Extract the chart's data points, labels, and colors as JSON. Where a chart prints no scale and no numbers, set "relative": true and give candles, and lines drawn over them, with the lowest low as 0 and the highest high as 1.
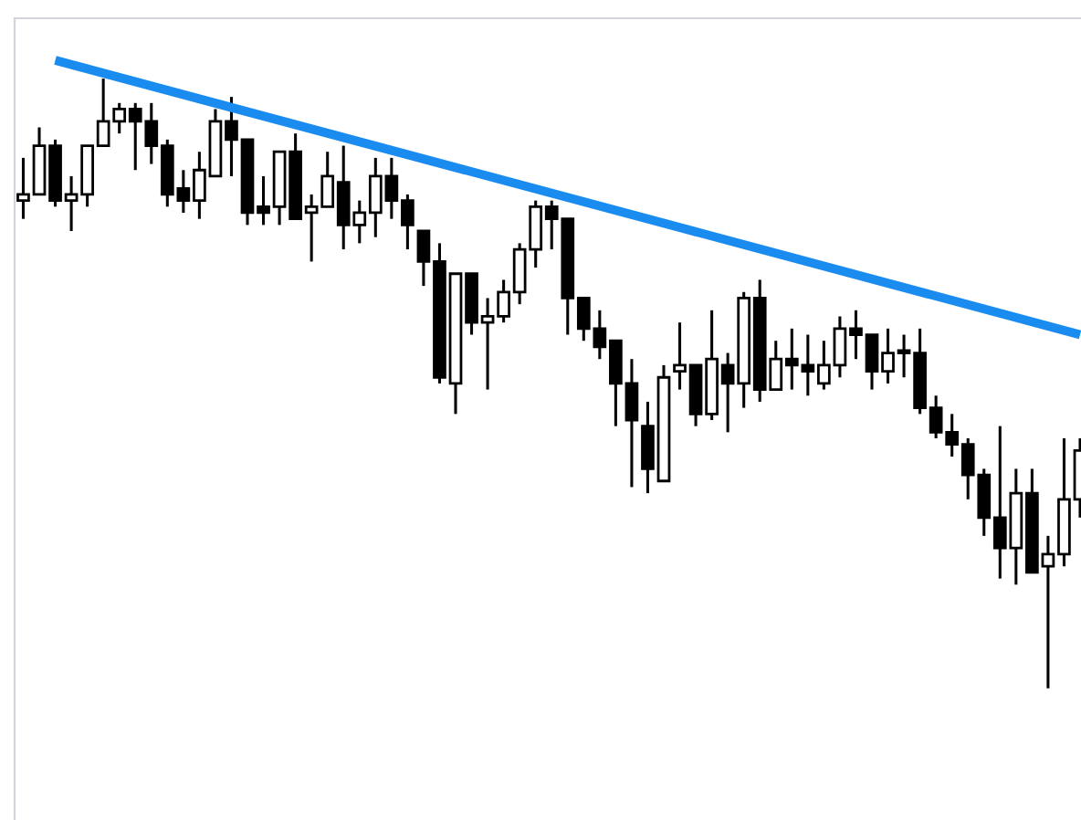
{
  "chart_data": {
    "type": "candlestick",
    "relative": true,
    "color": "#000000",
    "categories": [
      null,
      null,
      null,
      null,
      null,
      null,
      null,
      null,
      null,
      null,
      null,
      null,
      null,
      null,
      null,
      null,
      null,
      null,
      null,
      null,
      null,
      null,
      null,
      null,
      null,
      null,
      null,
      null,
      null,
      null,
      null,
      null,
      null,
      null,
      null,
      null,
      null,
      null,
      null,
      null,
      null,
      null,
      null,
      null,
      null,
      null,
      null,
      null,
      null,
      null,
      null,
      null,
      null,
      null,
      null,
      null,
      null,
      null,
      null,
      null,
      null,
      null,
      null,
      null,
      null,
      null,
      null
    ],
    "ohlc": [
      [
        0.8,
        0.87,
        0.77,
        0.81
      ],
      [
        0.81,
        0.92,
        0.81,
        0.89
      ],
      [
        0.89,
        0.9,
        0.79,
        0.8
      ],
      [
        0.8,
        0.84,
        0.75,
        0.81
      ],
      [
        0.81,
        0.89,
        0.79,
        0.89
      ],
      [
        0.89,
        1.0,
        0.89,
        0.93
      ],
      [
        0.93,
        0.96,
        0.91,
        0.95
      ],
      [
        0.95,
        0.96,
        0.85,
        0.93
      ],
      [
        0.93,
        0.96,
        0.86,
        0.89
      ],
      [
        0.89,
        0.9,
        0.79,
        0.81
      ],
      [
        0.82,
        0.85,
        0.78,
        0.8
      ],
      [
        0.8,
        0.88,
        0.77,
        0.85
      ],
      [
        0.84,
        0.95,
        0.84,
        0.93
      ],
      [
        0.93,
        0.97,
        0.84,
        0.9
      ],
      [
        0.9,
        0.9,
        0.76,
        0.78
      ],
      [
        0.79,
        0.84,
        0.76,
        0.78
      ],
      [
        0.79,
        0.88,
        0.76,
        0.88
      ],
      [
        0.88,
        0.91,
        0.77,
        0.77
      ],
      [
        0.78,
        0.81,
        0.7,
        0.79
      ],
      [
        0.79,
        0.88,
        0.79,
        0.84
      ],
      [
        0.83,
        0.89,
        0.72,
        0.76
      ],
      [
        0.76,
        0.8,
        0.73,
        0.78
      ],
      [
        0.78,
        0.87,
        0.74,
        0.84
      ],
      [
        0.84,
        0.87,
        0.77,
        0.8
      ],
      [
        0.8,
        0.81,
        0.72,
        0.76
      ],
      [
        0.75,
        0.75,
        0.66,
        0.7
      ],
      [
        0.7,
        0.73,
        0.5,
        0.51
      ],
      [
        0.5,
        0.68,
        0.45,
        0.68
      ],
      [
        0.68,
        0.68,
        0.58,
        0.6
      ],
      [
        0.6,
        0.64,
        0.49,
        0.61
      ],
      [
        0.61,
        0.67,
        0.6,
        0.65
      ],
      [
        0.65,
        0.73,
        0.63,
        0.72
      ],
      [
        0.72,
        0.8,
        0.69,
        0.79
      ],
      [
        0.79,
        0.8,
        0.72,
        0.77
      ],
      [
        0.77,
        0.77,
        0.58,
        0.64
      ],
      [
        0.64,
        0.64,
        0.57,
        0.59
      ],
      [
        0.59,
        0.62,
        0.54,
        0.56
      ],
      [
        0.57,
        0.57,
        0.43,
        0.5
      ],
      [
        0.5,
        0.54,
        0.33,
        0.44
      ],
      [
        0.43,
        0.47,
        0.32,
        0.36
      ],
      [
        0.34,
        0.53,
        0.34,
        0.51
      ],
      [
        0.52,
        0.6,
        0.49,
        0.53
      ],
      [
        0.53,
        0.53,
        0.43,
        0.45
      ],
      [
        0.45,
        0.62,
        0.44,
        0.54
      ],
      [
        0.53,
        0.55,
        0.42,
        0.5
      ],
      [
        0.5,
        0.65,
        0.46,
        0.64
      ],
      [
        0.64,
        0.67,
        0.47,
        0.49
      ],
      [
        0.49,
        0.57,
        0.49,
        0.54
      ],
      [
        0.54,
        0.59,
        0.49,
        0.53
      ],
      [
        0.53,
        0.58,
        0.48,
        0.52
      ],
      [
        0.5,
        0.57,
        0.49,
        0.53
      ],
      [
        0.53,
        0.61,
        0.51,
        0.59
      ],
      [
        0.59,
        0.62,
        0.54,
        0.58
      ],
      [
        0.58,
        0.58,
        0.49,
        0.52
      ],
      [
        0.52,
        0.59,
        0.5,
        0.55
      ],
      [
        0.55,
        0.58,
        0.51,
        0.55
      ],
      [
        0.55,
        0.59,
        0.45,
        0.46
      ],
      [
        0.46,
        0.48,
        0.41,
        0.42
      ],
      [
        0.42,
        0.45,
        0.38,
        0.4
      ],
      [
        0.4,
        0.41,
        0.31,
        0.35
      ],
      [
        0.35,
        0.36,
        0.25,
        0.28
      ],
      [
        0.28,
        0.43,
        0.18,
        0.23
      ],
      [
        0.23,
        0.36,
        0.17,
        0.32
      ],
      [
        0.32,
        0.36,
        0.19,
        0.19
      ],
      [
        0.2,
        0.25,
        0.0,
        0.22
      ],
      [
        0.22,
        0.41,
        0.2,
        0.31
      ],
      [
        0.31,
        0.41,
        0.28,
        0.39
      ]
    ],
    "series": [
      {
        "type": "line",
        "values": [
          null,
          null,
          1.03,
          null,
          null,
          null,
          null,
          null,
          null,
          null,
          null,
          null,
          null,
          null,
          null,
          null,
          null,
          null,
          null,
          null,
          null,
          null,
          null,
          null,
          null,
          null,
          null,
          null,
          null,
          null,
          null,
          null,
          null,
          null,
          null,
          null,
          null,
          null,
          null,
          null,
          null,
          null,
          null,
          null,
          null,
          null,
          null,
          null,
          null,
          null,
          null,
          null,
          null,
          null,
          null,
          null,
          null,
          null,
          null,
          null,
          null,
          null,
          null,
          null,
          null,
          null,
          0.58
        ],
        "color": "#1a8cf0"
      }
    ]
  }
}
